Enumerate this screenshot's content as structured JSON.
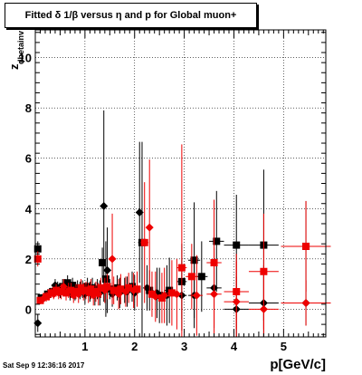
{
  "window": {
    "title": "Fitted δ 1/β versus η and p for Global muon+"
  },
  "footer": {
    "datestamp": "Sat Sep  9 12:36:16 2017"
  },
  "chart_data": {
    "type": "scatter",
    "title": "Fitted δ 1/β versus η and p for Global muon+",
    "xlabel": "p[GeV/c]",
    "ylabel": "z",
    "ylabel_subscript": "dbetainv",
    "xlim": [
      0,
      5.85
    ],
    "ylim": [
      -1.1,
      11.1
    ],
    "x_ticks": [
      1,
      2,
      3,
      4,
      5
    ],
    "x_tick_labels": [
      "1",
      "2",
      "3",
      "4",
      "5"
    ],
    "y_ticks": [
      0,
      2,
      4,
      6,
      8,
      10
    ],
    "y_tick_labels": [
      "0",
      "2",
      "4",
      "6",
      "8",
      "10"
    ],
    "grid": true,
    "colors": {
      "black_series": "#000000",
      "red_series": "#ee0000"
    },
    "series": [
      {
        "marker": "square",
        "color": "#000000",
        "points": [
          {
            "x": 0.05,
            "y": 2.4,
            "xerr": 0.05,
            "yerr": 0.3
          },
          {
            "x": 0.12,
            "y": 0.45,
            "xerr": 0.03,
            "yerr": 0.15
          },
          {
            "x": 0.25,
            "y": 0.6,
            "xerr": 0.04,
            "yerr": 0.2
          },
          {
            "x": 0.35,
            "y": 0.7,
            "xerr": 0.04,
            "yerr": 0.2
          },
          {
            "x": 0.45,
            "y": 0.85,
            "xerr": 0.04,
            "yerr": 0.25
          },
          {
            "x": 0.55,
            "y": 0.9,
            "xerr": 0.04,
            "yerr": 0.3
          },
          {
            "x": 0.65,
            "y": 1.05,
            "xerr": 0.04,
            "yerr": 0.3
          },
          {
            "x": 0.75,
            "y": 0.95,
            "xerr": 0.04,
            "yerr": 0.3
          },
          {
            "x": 0.85,
            "y": 0.85,
            "xerr": 0.04,
            "yerr": 0.3
          },
          {
            "x": 0.95,
            "y": 0.8,
            "xerr": 0.04,
            "yerr": 0.35
          },
          {
            "x": 1.05,
            "y": 0.9,
            "xerr": 0.04,
            "yerr": 0.35
          },
          {
            "x": 1.15,
            "y": 0.85,
            "xerr": 0.04,
            "yerr": 0.4
          },
          {
            "x": 1.25,
            "y": 0.8,
            "xerr": 0.04,
            "yerr": 0.4
          },
          {
            "x": 1.35,
            "y": 1.85,
            "xerr": 0.04,
            "yerr": 0.6
          },
          {
            "x": 1.42,
            "y": 1.2,
            "xerr": 0.04,
            "yerr": 1.5
          },
          {
            "x": 1.5,
            "y": 0.8,
            "xerr": 0.05,
            "yerr": 0.4
          },
          {
            "x": 1.65,
            "y": 0.85,
            "xerr": 0.05,
            "yerr": 0.5
          },
          {
            "x": 1.8,
            "y": 0.75,
            "xerr": 0.05,
            "yerr": 0.5
          },
          {
            "x": 1.95,
            "y": 0.9,
            "xerr": 0.05,
            "yerr": 0.6
          },
          {
            "x": 2.15,
            "y": 2.65,
            "xerr": 0.08,
            "yerr": 4.0
          },
          {
            "x": 2.3,
            "y": 0.75,
            "xerr": 0.08,
            "yerr": 0.8
          },
          {
            "x": 2.5,
            "y": 0.55,
            "xerr": 0.08,
            "yerr": 1.1
          },
          {
            "x": 2.7,
            "y": 0.75,
            "xerr": 0.1,
            "yerr": 1.3
          },
          {
            "x": 2.95,
            "y": 1.1,
            "xerr": 0.1,
            "yerr": 1.5
          },
          {
            "x": 3.2,
            "y": 1.95,
            "xerr": 0.12,
            "yerr": 2.3
          },
          {
            "x": 3.35,
            "y": 1.3,
            "xerr": 0.12,
            "yerr": 1.4
          },
          {
            "x": 3.65,
            "y": 2.7,
            "xerr": 0.15,
            "yerr": 2.0
          },
          {
            "x": 4.05,
            "y": 2.55,
            "xerr": 0.25,
            "yerr": 2.0
          },
          {
            "x": 4.6,
            "y": 2.55,
            "xerr": 0.3,
            "yerr": 3.0
          },
          {
            "x": 5.45,
            "y": 2.5,
            "xerr": 0.5,
            "yerr": 1.8
          }
        ]
      },
      {
        "marker": "diamond",
        "color": "#000000",
        "points": [
          {
            "x": 0.05,
            "y": -0.55,
            "xerr": 0.05,
            "yerr": 0.35
          },
          {
            "x": 0.2,
            "y": 0.5,
            "xerr": 0.03,
            "yerr": 0.15
          },
          {
            "x": 0.3,
            "y": 0.65,
            "xerr": 0.03,
            "yerr": 0.2
          },
          {
            "x": 0.4,
            "y": 0.95,
            "xerr": 0.04,
            "yerr": 0.25
          },
          {
            "x": 0.5,
            "y": 0.75,
            "xerr": 0.04,
            "yerr": 0.3
          },
          {
            "x": 0.6,
            "y": 0.9,
            "xerr": 0.04,
            "yerr": 0.3
          },
          {
            "x": 0.7,
            "y": 0.65,
            "xerr": 0.04,
            "yerr": 0.3
          },
          {
            "x": 0.8,
            "y": 0.7,
            "xerr": 0.04,
            "yerr": 0.35
          },
          {
            "x": 0.9,
            "y": 0.75,
            "xerr": 0.04,
            "yerr": 0.35
          },
          {
            "x": 1.0,
            "y": 0.6,
            "xerr": 0.04,
            "yerr": 0.4
          },
          {
            "x": 1.1,
            "y": 0.7,
            "xerr": 0.04,
            "yerr": 0.4
          },
          {
            "x": 1.2,
            "y": 0.6,
            "xerr": 0.04,
            "yerr": 0.45
          },
          {
            "x": 1.3,
            "y": 0.65,
            "xerr": 0.04,
            "yerr": 0.5
          },
          {
            "x": 1.38,
            "y": 4.1,
            "xerr": 0.04,
            "yerr": 3.8
          },
          {
            "x": 1.45,
            "y": 1.55,
            "xerr": 0.04,
            "yerr": 1.7
          },
          {
            "x": 1.55,
            "y": 0.6,
            "xerr": 0.05,
            "yerr": 0.5
          },
          {
            "x": 1.7,
            "y": 0.65,
            "xerr": 0.05,
            "yerr": 0.6
          },
          {
            "x": 1.85,
            "y": 0.7,
            "xerr": 0.05,
            "yerr": 0.6
          },
          {
            "x": 2.0,
            "y": 0.65,
            "xerr": 0.05,
            "yerr": 0.7
          },
          {
            "x": 2.1,
            "y": 3.85,
            "xerr": 0.06,
            "yerr": 2.8
          },
          {
            "x": 2.25,
            "y": 0.85,
            "xerr": 0.07,
            "yerr": 0.9
          },
          {
            "x": 2.45,
            "y": 0.65,
            "xerr": 0.08,
            "yerr": 1.0
          },
          {
            "x": 2.65,
            "y": 0.55,
            "xerr": 0.1,
            "yerr": 1.2
          },
          {
            "x": 2.95,
            "y": 0.55,
            "xerr": 0.1,
            "yerr": 1.4
          },
          {
            "x": 3.2,
            "y": 0.55,
            "xerr": 0.12,
            "yerr": 1.3
          },
          {
            "x": 3.6,
            "y": 0.85,
            "xerr": 0.15,
            "yerr": 1.6
          },
          {
            "x": 4.05,
            "y": 0.0,
            "xerr": 0.25,
            "yerr": 1.3
          },
          {
            "x": 4.6,
            "y": 0.25,
            "xerr": 0.3,
            "yerr": 1.5
          },
          {
            "x": 5.45,
            "y": 0.25,
            "xerr": 0.5,
            "yerr": 0.9
          }
        ]
      },
      {
        "marker": "square",
        "color": "#ee0000",
        "points": [
          {
            "x": 0.05,
            "y": 2.0,
            "xerr": 0.05,
            "yerr": 0.3
          },
          {
            "x": 0.1,
            "y": 0.35,
            "xerr": 0.03,
            "yerr": 0.15
          },
          {
            "x": 0.22,
            "y": 0.5,
            "xerr": 0.03,
            "yerr": 0.2
          },
          {
            "x": 0.32,
            "y": 0.65,
            "xerr": 0.04,
            "yerr": 0.2
          },
          {
            "x": 0.42,
            "y": 0.75,
            "xerr": 0.04,
            "yerr": 0.25
          },
          {
            "x": 0.52,
            "y": 0.7,
            "xerr": 0.04,
            "yerr": 0.3
          },
          {
            "x": 0.62,
            "y": 0.65,
            "xerr": 0.04,
            "yerr": 0.3
          },
          {
            "x": 0.72,
            "y": 0.75,
            "xerr": 0.04,
            "yerr": 0.3
          },
          {
            "x": 0.82,
            "y": 0.7,
            "xerr": 0.04,
            "yerr": 0.3
          },
          {
            "x": 0.92,
            "y": 0.85,
            "xerr": 0.04,
            "yerr": 0.35
          },
          {
            "x": 1.02,
            "y": 0.75,
            "xerr": 0.04,
            "yerr": 0.35
          },
          {
            "x": 1.12,
            "y": 0.8,
            "xerr": 0.04,
            "yerr": 0.4
          },
          {
            "x": 1.22,
            "y": 0.7,
            "xerr": 0.04,
            "yerr": 0.4
          },
          {
            "x": 1.32,
            "y": 0.85,
            "xerr": 0.04,
            "yerr": 0.4
          },
          {
            "x": 1.45,
            "y": 0.9,
            "xerr": 0.04,
            "yerr": 0.5
          },
          {
            "x": 1.58,
            "y": 0.75,
            "xerr": 0.05,
            "yerr": 0.55
          },
          {
            "x": 1.72,
            "y": 0.8,
            "xerr": 0.05,
            "yerr": 0.6
          },
          {
            "x": 1.88,
            "y": 0.85,
            "xerr": 0.05,
            "yerr": 0.6
          },
          {
            "x": 2.05,
            "y": 0.8,
            "xerr": 0.05,
            "yerr": 0.7
          },
          {
            "x": 2.2,
            "y": 2.65,
            "xerr": 0.08,
            "yerr": 2.4
          },
          {
            "x": 2.35,
            "y": 0.6,
            "xerr": 0.08,
            "yerr": 0.9
          },
          {
            "x": 2.55,
            "y": 0.45,
            "xerr": 0.08,
            "yerr": 1.0
          },
          {
            "x": 2.75,
            "y": 0.65,
            "xerr": 0.1,
            "yerr": 1.3
          },
          {
            "x": 2.95,
            "y": 1.65,
            "xerr": 0.1,
            "yerr": 4.9
          },
          {
            "x": 3.15,
            "y": 1.3,
            "xerr": 0.12,
            "yerr": 1.3
          },
          {
            "x": 3.6,
            "y": 1.85,
            "xerr": 0.15,
            "yerr": 2.5
          },
          {
            "x": 4.05,
            "y": 0.7,
            "xerr": 0.25,
            "yerr": 1.5
          },
          {
            "x": 4.6,
            "y": 1.5,
            "xerr": 0.3,
            "yerr": 2.3
          },
          {
            "x": 5.45,
            "y": 2.5,
            "xerr": 0.5,
            "yerr": 1.8
          }
        ]
      },
      {
        "marker": "diamond",
        "color": "#ee0000",
        "points": [
          {
            "x": 0.15,
            "y": 0.4,
            "xerr": 0.03,
            "yerr": 0.15
          },
          {
            "x": 0.27,
            "y": 0.55,
            "xerr": 0.03,
            "yerr": 0.2
          },
          {
            "x": 0.37,
            "y": 0.6,
            "xerr": 0.04,
            "yerr": 0.2
          },
          {
            "x": 0.47,
            "y": 0.65,
            "xerr": 0.04,
            "yerr": 0.25
          },
          {
            "x": 0.57,
            "y": 0.9,
            "xerr": 0.04,
            "yerr": 0.3
          },
          {
            "x": 0.67,
            "y": 0.75,
            "xerr": 0.04,
            "yerr": 0.3
          },
          {
            "x": 0.77,
            "y": 0.55,
            "xerr": 0.04,
            "yerr": 0.3
          },
          {
            "x": 0.87,
            "y": 0.6,
            "xerr": 0.04,
            "yerr": 0.35
          },
          {
            "x": 0.97,
            "y": 0.7,
            "xerr": 0.04,
            "yerr": 0.35
          },
          {
            "x": 1.07,
            "y": 0.65,
            "xerr": 0.04,
            "yerr": 0.4
          },
          {
            "x": 1.17,
            "y": 0.55,
            "xerr": 0.04,
            "yerr": 0.4
          },
          {
            "x": 1.27,
            "y": 0.6,
            "xerr": 0.04,
            "yerr": 0.45
          },
          {
            "x": 1.4,
            "y": 0.75,
            "xerr": 0.04,
            "yerr": 0.5
          },
          {
            "x": 1.55,
            "y": 2.0,
            "xerr": 0.05,
            "yerr": 1.8
          },
          {
            "x": 1.68,
            "y": 0.6,
            "xerr": 0.05,
            "yerr": 0.6
          },
          {
            "x": 1.82,
            "y": 0.7,
            "xerr": 0.05,
            "yerr": 0.6
          },
          {
            "x": 1.98,
            "y": 0.75,
            "xerr": 0.05,
            "yerr": 0.7
          },
          {
            "x": 2.3,
            "y": 3.25,
            "xerr": 0.07,
            "yerr": 2.7
          },
          {
            "x": 2.42,
            "y": 0.5,
            "xerr": 0.08,
            "yerr": 1.0
          },
          {
            "x": 2.6,
            "y": 0.55,
            "xerr": 0.1,
            "yerr": 1.1
          },
          {
            "x": 2.85,
            "y": 0.6,
            "xerr": 0.1,
            "yerr": 1.4
          },
          {
            "x": 3.25,
            "y": 0.55,
            "xerr": 0.12,
            "yerr": 1.6
          },
          {
            "x": 3.6,
            "y": 0.6,
            "xerr": 0.15,
            "yerr": 1.8
          },
          {
            "x": 4.05,
            "y": 0.3,
            "xerr": 0.25,
            "yerr": 1.6
          },
          {
            "x": 4.6,
            "y": 0.0,
            "xerr": 0.3,
            "yerr": 1.4
          },
          {
            "x": 5.45,
            "y": 0.25,
            "xerr": 0.5,
            "yerr": 0.9
          }
        ]
      }
    ]
  }
}
